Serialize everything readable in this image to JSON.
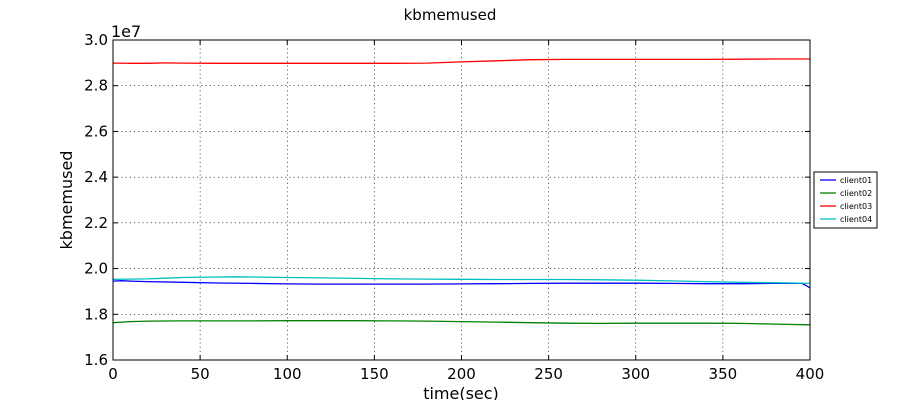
{
  "chart_data": {
    "type": "line",
    "title": "kbmemused",
    "xlabel": "time(sec)",
    "ylabel": "kbmemused",
    "y_scale_label": "1e7",
    "xlim": [
      0,
      400
    ],
    "ylim": [
      1.6,
      3.0
    ],
    "x_ticks": [
      0,
      50,
      100,
      150,
      200,
      250,
      300,
      350,
      400
    ],
    "y_ticks": [
      1.6,
      1.8,
      2.0,
      2.2,
      2.4,
      2.6,
      2.8,
      3.0
    ],
    "y_tick_labels": [
      "1.6",
      "1.8",
      "2.0",
      "2.2",
      "2.4",
      "2.6",
      "2.8",
      "3.0"
    ],
    "grid": true,
    "legend_position": "right",
    "series": [
      {
        "name": "client01",
        "color": "#0000ff",
        "x": [
          0,
          5,
          10,
          20,
          40,
          60,
          80,
          100,
          120,
          140,
          160,
          180,
          200,
          220,
          240,
          260,
          280,
          300,
          320,
          340,
          360,
          380,
          395,
          398,
          400
        ],
        "y": [
          1.945,
          1.947,
          1.945,
          1.943,
          1.94,
          1.937,
          1.935,
          1.933,
          1.932,
          1.932,
          1.932,
          1.932,
          1.933,
          1.934,
          1.935,
          1.936,
          1.936,
          1.936,
          1.935,
          1.934,
          1.934,
          1.935,
          1.936,
          1.925,
          1.915
        ]
      },
      {
        "name": "client02",
        "color": "#008000",
        "x": [
          0,
          10,
          20,
          40,
          60,
          80,
          100,
          120,
          140,
          160,
          180,
          200,
          220,
          240,
          260,
          280,
          300,
          320,
          340,
          360,
          380,
          400
        ],
        "y": [
          1.763,
          1.768,
          1.77,
          1.771,
          1.771,
          1.771,
          1.772,
          1.772,
          1.772,
          1.771,
          1.77,
          1.768,
          1.766,
          1.763,
          1.761,
          1.76,
          1.761,
          1.761,
          1.761,
          1.76,
          1.757,
          1.754
        ]
      },
      {
        "name": "client03",
        "color": "#ff0000",
        "x": [
          0,
          10,
          20,
          30,
          40,
          60,
          80,
          100,
          120,
          140,
          160,
          180,
          200,
          220,
          240,
          260,
          280,
          300,
          320,
          340,
          360,
          380,
          400
        ],
        "y": [
          2.899,
          2.898,
          2.898,
          2.9,
          2.899,
          2.898,
          2.898,
          2.898,
          2.898,
          2.898,
          2.898,
          2.899,
          2.904,
          2.909,
          2.914,
          2.915,
          2.915,
          2.915,
          2.915,
          2.915,
          2.916,
          2.917,
          2.917
        ]
      },
      {
        "name": "client04",
        "color": "#00bfbf",
        "x": [
          0,
          10,
          20,
          30,
          40,
          60,
          70,
          80,
          100,
          120,
          140,
          160,
          180,
          200,
          220,
          240,
          260,
          280,
          300,
          320,
          340,
          360,
          380,
          400
        ],
        "y": [
          1.953,
          1.954,
          1.955,
          1.958,
          1.961,
          1.963,
          1.964,
          1.963,
          1.961,
          1.959,
          1.957,
          1.955,
          1.954,
          1.953,
          1.952,
          1.952,
          1.952,
          1.951,
          1.949,
          1.946,
          1.943,
          1.94,
          1.938,
          1.935
        ]
      }
    ]
  }
}
